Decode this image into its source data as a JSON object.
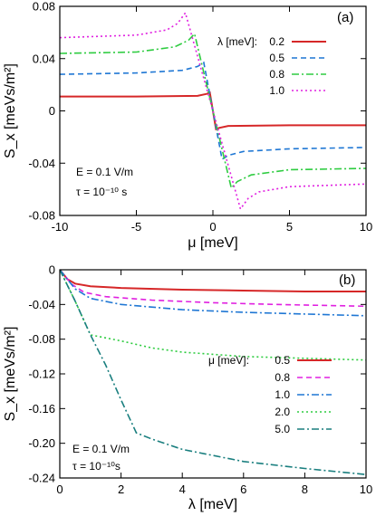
{
  "chart_data": [
    {
      "type": "line",
      "panel_label": "(a)",
      "xlabel": "μ  [meV]",
      "ylabel": "S_x  [meVs/m²]",
      "xlim": [
        -10,
        10
      ],
      "ylim": [
        -0.08,
        0.08
      ],
      "xticks": [
        -10,
        -5,
        0,
        5,
        10
      ],
      "yticks": [
        0.08,
        0.04,
        0,
        -0.04,
        -0.08
      ],
      "ytick_labels": [
        "0.08",
        "0.04",
        "0",
        "-0.04",
        "-0.08"
      ],
      "grid": false,
      "legend": {
        "title": "λ [meV]:",
        "placement": "top-right"
      },
      "annotation_lines": [
        "E = 0.1  V/m",
        "τ = 10⁻¹⁰ s"
      ],
      "series": [
        {
          "name": "0.2",
          "color": "#d62728",
          "dash": "solid",
          "x": [
            -10,
            -5,
            -1,
            -0.4,
            -0.2,
            0,
            0.2,
            0.4,
            1,
            5,
            10
          ],
          "y": [
            0.011,
            0.011,
            0.0115,
            0.013,
            0.014,
            0,
            -0.014,
            -0.013,
            -0.0115,
            -0.011,
            -0.011
          ]
        },
        {
          "name": "0.5",
          "color": "#1f77d4",
          "dash": "dashed",
          "x": [
            -10,
            -5,
            -2,
            -1,
            -0.6,
            0,
            0.6,
            1,
            2,
            5,
            10
          ],
          "y": [
            0.028,
            0.029,
            0.031,
            0.034,
            0.037,
            0,
            -0.037,
            -0.034,
            -0.031,
            -0.029,
            -0.028
          ]
        },
        {
          "name": "0.8",
          "color": "#2ecc40",
          "dash": "dashdot",
          "x": [
            -10,
            -5,
            -2.5,
            -1.6,
            -1.2,
            0,
            1.2,
            1.6,
            2.5,
            5,
            10
          ],
          "y": [
            0.044,
            0.045,
            0.049,
            0.054,
            0.059,
            0,
            -0.059,
            -0.054,
            -0.049,
            -0.045,
            -0.044
          ]
        },
        {
          "name": "1.0",
          "color": "#e020e0",
          "dash": "dotted",
          "x": [
            -10,
            -5,
            -3,
            -2.3,
            -1.8,
            0,
            1.8,
            2.3,
            3,
            5,
            10
          ],
          "y": [
            0.056,
            0.058,
            0.062,
            0.067,
            0.075,
            0,
            -0.075,
            -0.067,
            -0.062,
            -0.058,
            -0.056
          ]
        }
      ]
    },
    {
      "type": "line",
      "panel_label": "(b)",
      "xlabel": "λ  [meV]",
      "ylabel": "S_x  [meVs/m²]",
      "xlim": [
        0,
        10
      ],
      "ylim": [
        -0.24,
        0
      ],
      "xticks": [
        0,
        2,
        4,
        6,
        8,
        10
      ],
      "yticks": [
        0,
        -0.04,
        -0.08,
        -0.12,
        -0.16,
        -0.2,
        -0.24
      ],
      "ytick_labels": [
        "0",
        "-0.04",
        "-0.08",
        "-0.12",
        "-0.16",
        "-0.20",
        "-0.24"
      ],
      "grid": false,
      "legend": {
        "title": "μ [meV]:",
        "placement": "bottom-right"
      },
      "annotation_lines": [
        "E = 0.1 V/m",
        "τ = 10⁻¹⁰s"
      ],
      "series": [
        {
          "name": "0.5",
          "color": "#d62728",
          "dash": "solid",
          "x": [
            0,
            0.25,
            0.5,
            1,
            2,
            4,
            6,
            8,
            10
          ],
          "y": [
            0,
            -0.011,
            -0.016,
            -0.019,
            -0.021,
            -0.023,
            -0.024,
            -0.025,
            -0.025
          ]
        },
        {
          "name": "0.8",
          "color": "#e020e0",
          "dash": "dashed",
          "x": [
            0,
            0.4,
            0.8,
            1.5,
            3,
            5,
            7,
            10
          ],
          "y": [
            0,
            -0.017,
            -0.026,
            -0.031,
            -0.035,
            -0.038,
            -0.04,
            -0.042
          ]
        },
        {
          "name": "1.0",
          "color": "#1f77d4",
          "dash": "dashdot",
          "x": [
            0,
            0.5,
            1,
            2,
            4,
            6,
            8,
            10
          ],
          "y": [
            0,
            -0.022,
            -0.033,
            -0.04,
            -0.046,
            -0.049,
            -0.051,
            -0.053
          ]
        },
        {
          "name": "2.0",
          "color": "#2ecc40",
          "dash": "dotted",
          "x": [
            0,
            0.5,
            1,
            2,
            3,
            4,
            6,
            8,
            10
          ],
          "y": [
            0,
            -0.036,
            -0.075,
            -0.082,
            -0.09,
            -0.095,
            -0.1,
            -0.102,
            -0.104
          ]
        },
        {
          "name": "5.0",
          "color": "#1a7f7f",
          "dash": "dashdot",
          "x": [
            0,
            0.5,
            1,
            1.5,
            2,
            2.5,
            3,
            4,
            6,
            8,
            10
          ],
          "y": [
            0,
            -0.036,
            -0.075,
            -0.11,
            -0.15,
            -0.188,
            -0.195,
            -0.207,
            -0.221,
            -0.229,
            -0.236
          ]
        }
      ]
    }
  ]
}
